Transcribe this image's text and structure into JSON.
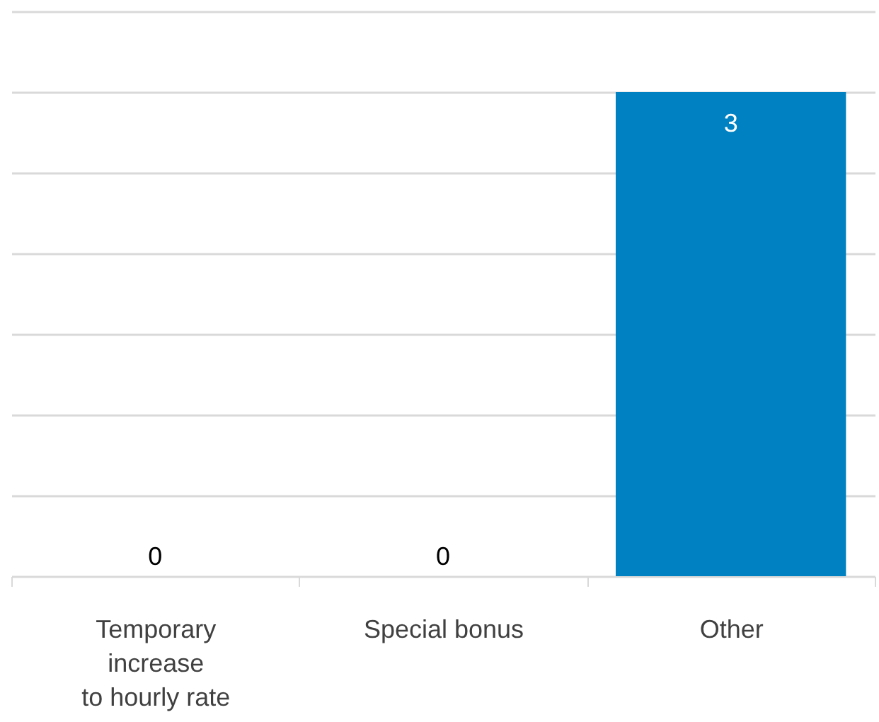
{
  "chart_data": {
    "type": "bar",
    "categories": [
      "Temporary\nincrease\nto hourly rate",
      "Special bonus",
      "Other"
    ],
    "values": [
      0,
      0,
      3
    ],
    "color": "#0081c2",
    "ylim": [
      0,
      3.5
    ],
    "yticks": [
      0,
      0.5,
      1,
      1.5,
      2,
      2.5,
      3,
      3.5
    ],
    "grid": "y",
    "tick_labels": "x",
    "data_labels": true
  }
}
